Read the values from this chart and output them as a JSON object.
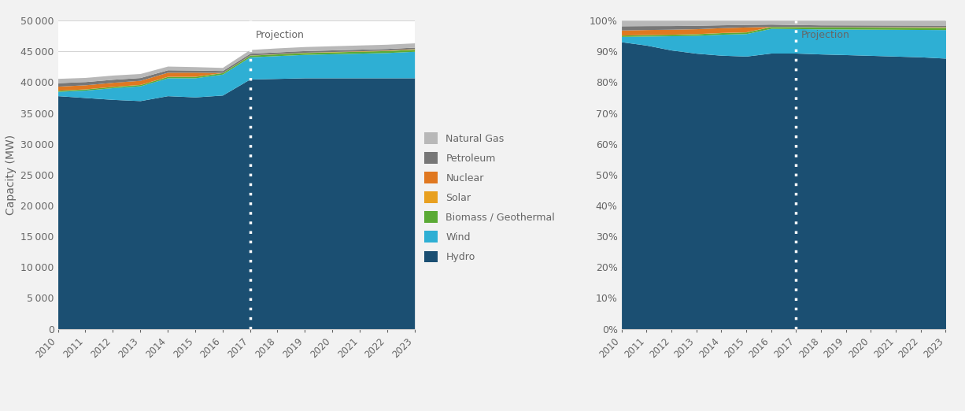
{
  "years": [
    2010,
    2011,
    2012,
    2013,
    2014,
    2015,
    2016,
    2017,
    2018,
    2019,
    2020,
    2021,
    2022,
    2023
  ],
  "hydro": [
    37800,
    37500,
    37200,
    37000,
    37800,
    37600,
    37900,
    40500,
    40600,
    40700,
    40700,
    40700,
    40700,
    40700
  ],
  "wind": [
    700,
    1200,
    1900,
    2400,
    2900,
    3100,
    3400,
    3600,
    3700,
    3800,
    3900,
    4000,
    4100,
    4300
  ],
  "biomass": [
    180,
    190,
    200,
    210,
    220,
    230,
    240,
    270,
    280,
    290,
    300,
    310,
    320,
    330
  ],
  "solar": [
    5,
    10,
    10,
    15,
    20,
    20,
    20,
    30,
    40,
    50,
    60,
    70,
    80,
    90
  ],
  "nuclear": [
    660,
    660,
    660,
    660,
    660,
    660,
    0,
    0,
    0,
    0,
    0,
    0,
    0,
    0
  ],
  "petroleum": [
    560,
    520,
    490,
    460,
    400,
    350,
    320,
    290,
    280,
    270,
    265,
    260,
    255,
    250
  ],
  "natgas": [
    700,
    680,
    680,
    650,
    600,
    550,
    500,
    600,
    650,
    660,
    670,
    680,
    690,
    700
  ],
  "projection_year": 2017,
  "colors": {
    "hydro": "#1b4f72",
    "wind": "#2eafd4",
    "biomass": "#5aaa35",
    "solar": "#e8a020",
    "nuclear": "#e07820",
    "petroleum": "#777777",
    "natgas": "#b8b8b8"
  },
  "legend_labels": {
    "natgas": "Natural Gas",
    "petroleum": "Petroleum",
    "nuclear": "Nuclear",
    "solar": "Solar",
    "biomass": "Biomass / Geothermal",
    "wind": "Wind",
    "hydro": "Hydro"
  },
  "ylabel_left": "Capacity (MW)",
  "ylim_left": [
    0,
    50000
  ],
  "yticks_left": [
    0,
    5000,
    10000,
    15000,
    20000,
    25000,
    30000,
    35000,
    40000,
    45000,
    50000
  ],
  "background_color": "#f2f2f2",
  "projection_label": "Projection",
  "axis_color": "#666666"
}
